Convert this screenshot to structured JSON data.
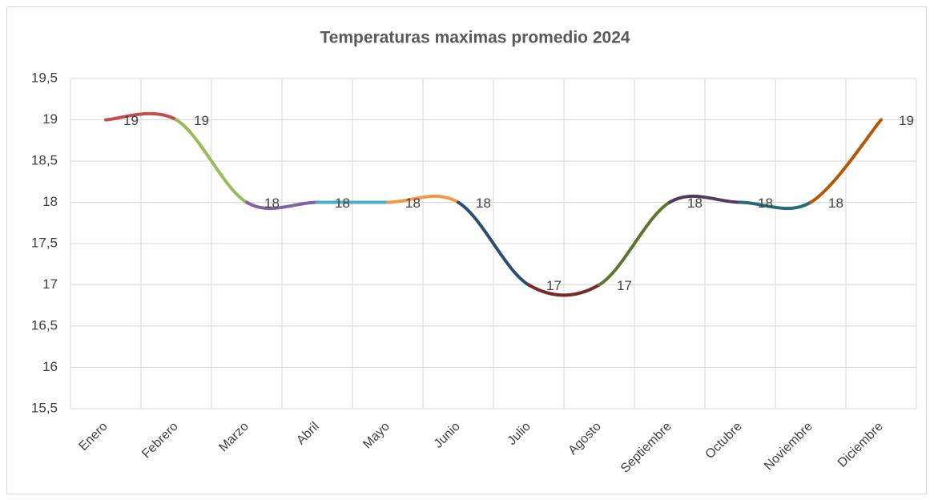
{
  "chart_data": {
    "type": "line",
    "title": "Temperaturas maximas promedio  2024",
    "categories": [
      "Enero",
      "Febrero",
      "Marzo",
      "Abril",
      "Mayo",
      "Junio",
      "Julio",
      "Agosto",
      "Septiembre",
      "Octubre",
      "Noviembre",
      "Diciembre"
    ],
    "values": [
      19,
      19,
      18,
      18,
      18,
      18,
      17,
      17,
      18,
      18,
      18,
      19
    ],
    "segment_colors": [
      "#c0504d",
      "#9bbb59",
      "#8064a2",
      "#4bacc6",
      "#f79646",
      "#2c4d75",
      "#772c2a",
      "#5f7530",
      "#4d3b62",
      "#276a7c",
      "#b65708"
    ],
    "smooth": true,
    "ylim": [
      15.5,
      19.5
    ],
    "yticks": [
      {
        "value": 15.5,
        "label": "15,5"
      },
      16,
      {
        "value": 16.5,
        "label": "16,5"
      },
      17,
      {
        "value": 17.5,
        "label": "17,5"
      },
      18,
      {
        "value": 18.5,
        "label": "18,5"
      },
      19,
      {
        "value": 19.5,
        "label": "19,5"
      }
    ],
    "grid": true
  }
}
